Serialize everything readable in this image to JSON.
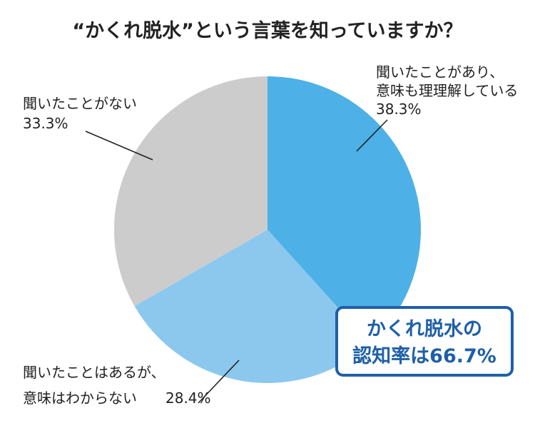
{
  "chart_data": {
    "type": "pie",
    "title": "“かくれ脱水”という言葉を知っていますか？",
    "slices": [
      {
        "label_lines": [
          "聞いたことがあり、",
          "意味も理理解している"
        ],
        "value": 38.3,
        "value_text": "38.3%",
        "color": "#4db0e6"
      },
      {
        "label_lines": [
          "聞いたことはあるが、",
          "意味はわからない"
        ],
        "value": 28.4,
        "value_text": "28.4%",
        "color": "#8cc8ee"
      },
      {
        "label_lines": [
          "聞いたことがない"
        ],
        "value": 33.3,
        "value_text": "33.3%",
        "color": "#cccccc"
      }
    ],
    "start_angle": "12 o'clock",
    "direction": "clockwise",
    "callout": {
      "lines": [
        "かくれ脱水の",
        "認知率は66.7%"
      ],
      "color": "#1f5fa8"
    }
  }
}
